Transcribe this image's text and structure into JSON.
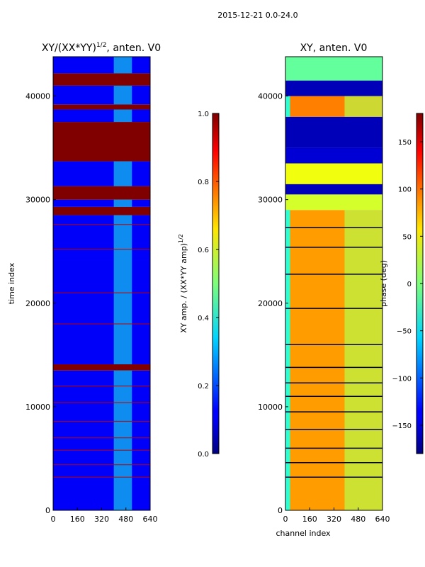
{
  "suptitle": "2015-12-21 0.0-24.0",
  "chart_data": [
    {
      "type": "heatmap",
      "title_main": "XY/(XX*YY)",
      "title_exp": "1/2",
      "title_tail": ", anten. V0",
      "xlabel": "",
      "ylabel": "time index",
      "xlim": [
        0,
        640
      ],
      "ylim": [
        0,
        43800
      ],
      "xticks": [
        0,
        160,
        320,
        480,
        640
      ],
      "yticks": [
        0,
        10000,
        20000,
        30000,
        40000
      ],
      "colorbar": {
        "label_main": "XY amp. / (XX*YY amp)",
        "label_exp": "1/2",
        "range": [
          0.0,
          1.0
        ],
        "ticks": [
          "0.0",
          "0.2",
          "0.4",
          "0.6",
          "0.8",
          "1.0"
        ],
        "tick_values": [
          0.0,
          0.2,
          0.4,
          0.6,
          0.8,
          1.0
        ]
      },
      "row_bands": [
        {
          "y0": 0,
          "y1": 13500,
          "value": 0.12
        },
        {
          "y0": 13500,
          "y1": 14100,
          "value": 1.0
        },
        {
          "y0": 14100,
          "y1": 28500,
          "value": 0.12
        },
        {
          "y0": 28500,
          "y1": 29300,
          "value": 1.0
        },
        {
          "y0": 29300,
          "y1": 30000,
          "value": 0.12
        },
        {
          "y0": 30000,
          "y1": 31300,
          "value": 1.0
        },
        {
          "y0": 31300,
          "y1": 33700,
          "value": 0.12
        },
        {
          "y0": 33700,
          "y1": 37500,
          "value": 1.0
        },
        {
          "y0": 37500,
          "y1": 38700,
          "value": 0.12
        },
        {
          "y0": 38700,
          "y1": 39200,
          "value": 1.0
        },
        {
          "y0": 39200,
          "y1": 41000,
          "value": 0.12
        },
        {
          "y0": 41000,
          "y1": 42200,
          "value": 1.0
        },
        {
          "y0": 42200,
          "y1": 43800,
          "value": 0.12
        }
      ],
      "hot_column_band": {
        "x0": 400,
        "x1": 520,
        "value": 0.4
      },
      "red_lines": [
        3200,
        4400,
        5800,
        7000,
        8600,
        10400,
        12000,
        18000,
        21000,
        25200,
        27600
      ]
    },
    {
      "type": "heatmap",
      "title_main": "XY, anten. V0",
      "xlabel": "channel index",
      "ylabel": "",
      "xlim": [
        0,
        640
      ],
      "ylim": [
        0,
        43800
      ],
      "xticks": [
        0,
        160,
        320,
        480,
        640
      ],
      "yticks": [
        0,
        10000,
        20000,
        30000,
        40000
      ],
      "colorbar": {
        "label_main": "phase (deg)",
        "range": [
          -180,
          180
        ],
        "ticks": [
          "−150",
          "−100",
          "−50",
          "0",
          "50",
          "100",
          "150"
        ],
        "tick_values": [
          -150,
          -100,
          -50,
          0,
          50,
          100,
          150
        ]
      },
      "row_bands": [
        {
          "y0": 0,
          "y1": 29000,
          "value": 80
        },
        {
          "y0": 29000,
          "y1": 30500,
          "value": 30
        },
        {
          "y0": 30500,
          "y1": 31500,
          "value": -160
        },
        {
          "y0": 31500,
          "y1": 33500,
          "value": 40
        },
        {
          "y0": 33500,
          "y1": 35000,
          "value": -150
        },
        {
          "y0": 35000,
          "y1": 38000,
          "value": -160
        },
        {
          "y0": 38000,
          "y1": 40000,
          "value": 90
        },
        {
          "y0": 40000,
          "y1": 41500,
          "value": -160
        },
        {
          "y0": 41500,
          "y1": 43800,
          "value": -10
        }
      ],
      "edge_column_band": {
        "x0": 0,
        "x1": 30,
        "value": -30
      },
      "right_column_band": {
        "x0": 390,
        "x1": 640,
        "value": 20
      },
      "dark_lines": [
        3200,
        4600,
        6000,
        7800,
        9500,
        11000,
        12300,
        13800,
        16000,
        19500,
        22800,
        25400,
        27300
      ]
    }
  ]
}
